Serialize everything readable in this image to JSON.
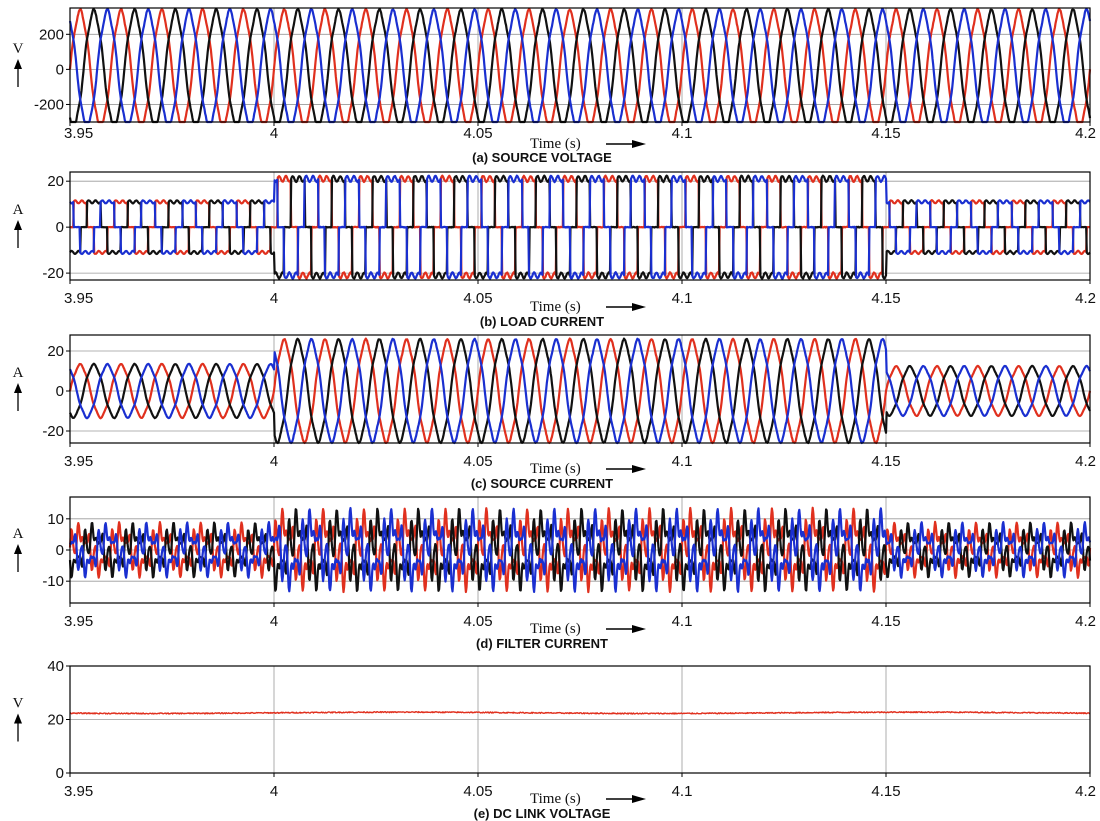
{
  "colors": {
    "phase_a": "#e0301e",
    "phase_b": "#111111",
    "phase_c": "#1a2fd0",
    "grid": "#9a9a9a",
    "frame": "#000000"
  },
  "chart_data": [
    {
      "type": "line",
      "caption": "(a) SOURCE VOLTAGE",
      "xlabel": "Time (s)",
      "ylabel": "V",
      "xlim": [
        3.95,
        4.2
      ],
      "ylim": [
        -300,
        350
      ],
      "yticks": [
        -200,
        0,
        200
      ],
      "ytick_labels": [
        "-200",
        "0",
        "200"
      ],
      "xticks": [
        3.95,
        4,
        4.05,
        4.1,
        4.15,
        4.2
      ],
      "xtick_labels": [
        "3.95",
        "4",
        "4.05",
        "4.1",
        "4.15",
        "4.2"
      ],
      "grid": true,
      "signal": {
        "kind": "sine",
        "frequency_hz": 100,
        "segments": [
          {
            "x": [
              3.95,
              4.2
            ],
            "amplitude": 330
          }
        ]
      },
      "series": [
        {
          "color": "#e0301e",
          "phase_deg": 0
        },
        {
          "color": "#111111",
          "phase_deg": -120
        },
        {
          "color": "#1a2fd0",
          "phase_deg": 120
        }
      ]
    },
    {
      "type": "line",
      "caption": "(b) LOAD CURRENT",
      "xlabel": "Time (s)",
      "ylabel": "A",
      "xlim": [
        3.95,
        4.2
      ],
      "ylim": [
        -23,
        24
      ],
      "yticks": [
        -20,
        0,
        20
      ],
      "ytick_labels": [
        "-20",
        "0",
        "20"
      ],
      "xticks": [
        3.95,
        4,
        4.05,
        4.1,
        4.15,
        4.2
      ],
      "xtick_labels": [
        "3.95",
        "4",
        "4.05",
        "4.1",
        "4.15",
        "4.2"
      ],
      "grid": true,
      "signal": {
        "kind": "six-step",
        "frequency_hz": 100,
        "segments": [
          {
            "x": [
              3.95,
              4.0
            ],
            "amplitude": 11
          },
          {
            "x": [
              4.0,
              4.15
            ],
            "amplitude": 21
          },
          {
            "x": [
              4.15,
              4.2
            ],
            "amplitude": 11
          }
        ]
      },
      "series": [
        {
          "color": "#e0301e",
          "phase_deg": 0
        },
        {
          "color": "#111111",
          "phase_deg": -120
        },
        {
          "color": "#1a2fd0",
          "phase_deg": 120
        }
      ]
    },
    {
      "type": "line",
      "caption": "(c) SOURCE CURRENT",
      "xlabel": "Time (s)",
      "ylabel": "A",
      "xlim": [
        3.95,
        4.2
      ],
      "ylim": [
        -26,
        28
      ],
      "yticks": [
        -20,
        0,
        20
      ],
      "ytick_labels": [
        "-20",
        "0",
        "20"
      ],
      "xticks": [
        3.95,
        4,
        4.05,
        4.1,
        4.15,
        4.2
      ],
      "xtick_labels": [
        "3.95",
        "4",
        "4.05",
        "4.1",
        "4.15",
        "4.2"
      ],
      "grid": true,
      "signal": {
        "kind": "sine",
        "frequency_hz": 100,
        "segments": [
          {
            "x": [
              3.95,
              4.0
            ],
            "amplitude": 13
          },
          {
            "x": [
              4.0,
              4.15
            ],
            "amplitude": 25
          },
          {
            "x": [
              4.15,
              4.2
            ],
            "amplitude": 12
          }
        ]
      },
      "series": [
        {
          "color": "#e0301e",
          "phase_deg": 0
        },
        {
          "color": "#111111",
          "phase_deg": -120
        },
        {
          "color": "#1a2fd0",
          "phase_deg": 120
        }
      ]
    },
    {
      "type": "line",
      "caption": "(d) FILTER CURRENT",
      "xlabel": "Time (s)",
      "ylabel": "A",
      "xlim": [
        3.95,
        4.2
      ],
      "ylim": [
        -17,
        17
      ],
      "yticks": [
        -10,
        0,
        10
      ],
      "ytick_labels": [
        "-10",
        "0",
        "10"
      ],
      "xticks": [
        3.95,
        4,
        4.05,
        4.1,
        4.15,
        4.2
      ],
      "xtick_labels": [
        "3.95",
        "4",
        "4.05",
        "4.1",
        "4.15",
        "4.2"
      ],
      "grid": true,
      "signal": {
        "kind": "harmonic",
        "frequency_hz": 100,
        "segments": [
          {
            "x": [
              3.95,
              4.0
            ],
            "amplitude": 8
          },
          {
            "x": [
              4.0,
              4.15
            ],
            "amplitude": 12
          },
          {
            "x": [
              4.15,
              4.2
            ],
            "amplitude": 8
          }
        ]
      },
      "series": [
        {
          "color": "#e0301e",
          "phase_deg": 0
        },
        {
          "color": "#111111",
          "phase_deg": -120
        },
        {
          "color": "#1a2fd0",
          "phase_deg": 120
        }
      ]
    },
    {
      "type": "line",
      "caption": "(e) DC LINK VOLTAGE",
      "xlabel": "Time (s)",
      "ylabel": "V",
      "xlim": [
        3.95,
        4.2
      ],
      "ylim": [
        0,
        40
      ],
      "yticks": [
        0,
        20,
        40
      ],
      "ytick_labels": [
        "0",
        "20",
        "40"
      ],
      "xticks": [
        3.95,
        4,
        4.05,
        4.1,
        4.15,
        4.2
      ],
      "xtick_labels": [
        "3.95",
        "4",
        "4.05",
        "4.1",
        "4.15",
        "4.2"
      ],
      "grid": true,
      "signal": {
        "kind": "dc",
        "level": 22.5,
        "ripple": 0.4
      },
      "series": [
        {
          "color": "#e0301e"
        }
      ]
    }
  ]
}
